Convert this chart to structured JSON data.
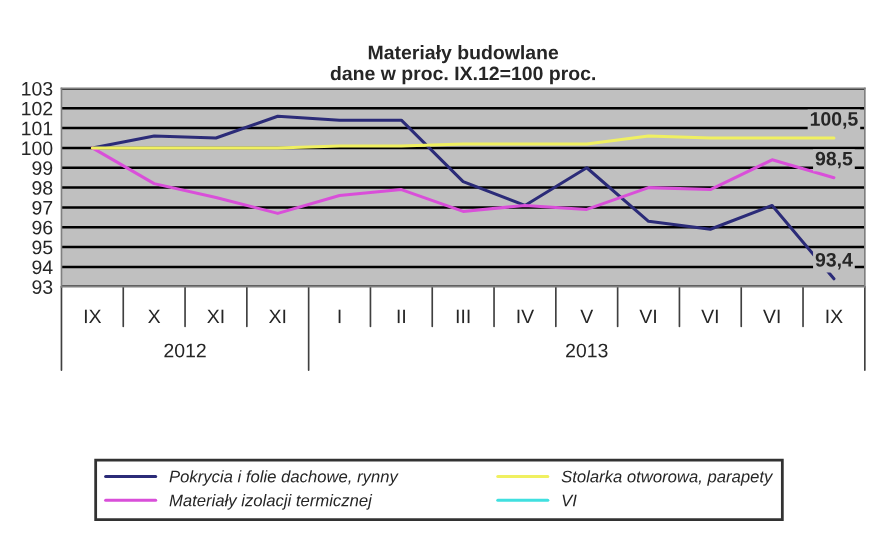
{
  "chart_data": {
    "type": "line",
    "title": "Materiały budowlane\ndane w proc. IX.12=100 proc.",
    "categories": [
      "IX",
      "X",
      "XI",
      "XI",
      "I",
      "II",
      "III",
      "IV",
      "V",
      "VI",
      "VI",
      "VI",
      "IX"
    ],
    "series": [
      {
        "name": "Pokrycia i folie dachowe, rynny",
        "color": "#2b2b78",
        "values": [
          100,
          100.6,
          100.5,
          101.6,
          101.4,
          101.4,
          98.3,
          97.1,
          99.0,
          96.3,
          95.9,
          97.1,
          93.4
        ],
        "value_labels": [
          null,
          null,
          null,
          null,
          null,
          null,
          null,
          null,
          null,
          null,
          null,
          null,
          "93,4"
        ]
      },
      {
        "name": "Materiały izolacji termicznej",
        "color": "#d94fd9",
        "values": [
          100,
          98.2,
          97.5,
          96.7,
          97.6,
          97.9,
          96.8,
          97.1,
          96.9,
          98.0,
          97.9,
          99.4,
          98.5
        ],
        "value_labels": [
          null,
          null,
          null,
          null,
          null,
          null,
          null,
          null,
          null,
          null,
          null,
          null,
          "98,5"
        ]
      },
      {
        "name": "Stolarka otworowa, parapety",
        "color": "#f0f060",
        "values": [
          100,
          100,
          100,
          100,
          100.1,
          100.1,
          100.2,
          100.2,
          100.2,
          100.6,
          100.5,
          100.5,
          100.5
        ],
        "value_labels": [
          null,
          null,
          null,
          null,
          null,
          null,
          null,
          null,
          null,
          null,
          null,
          null,
          "100,5"
        ]
      },
      {
        "name": "VI",
        "color": "#40e0e0",
        "values": [
          null,
          null,
          null,
          null,
          null,
          null,
          null,
          null,
          null,
          null,
          null,
          null,
          null
        ]
      }
    ],
    "annotations": [
      "2012",
      "2013"
    ],
    "ylim": [
      93,
      103
    ],
    "yticks": [
      93,
      94,
      95,
      96,
      97,
      98,
      99,
      100,
      101,
      102,
      103
    ],
    "grid": "y",
    "legend": "bottom",
    "marker": "none",
    "line_style": "solid"
  }
}
